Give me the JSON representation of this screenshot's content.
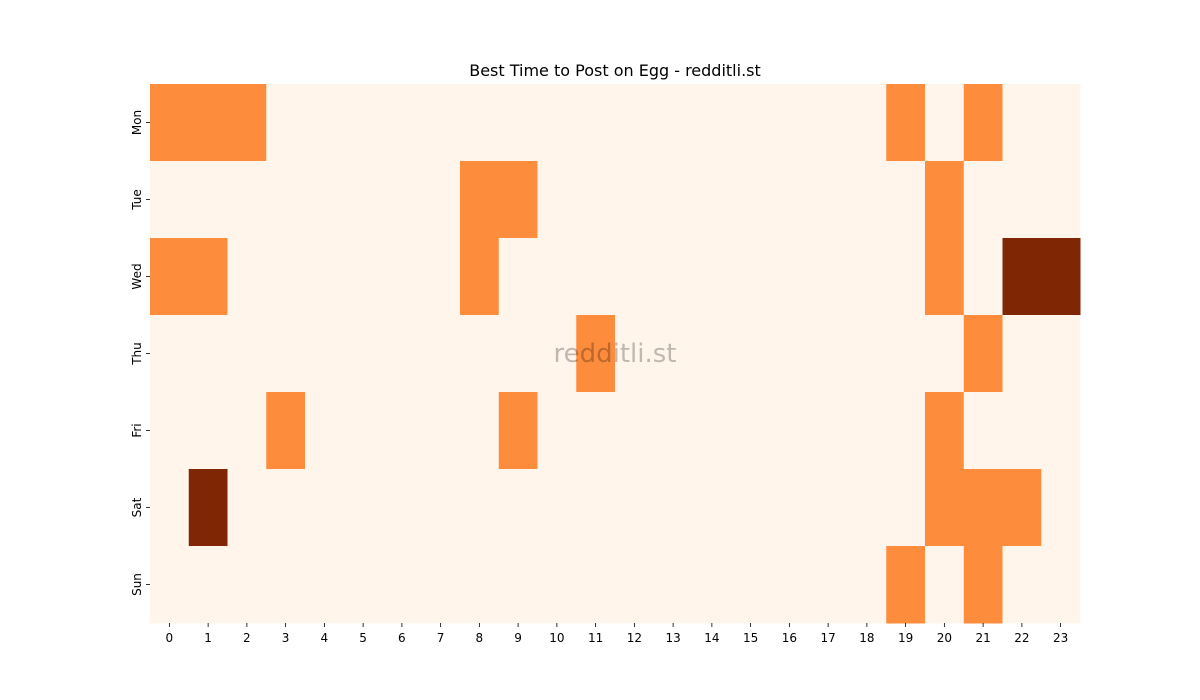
{
  "chart_data": {
    "type": "heatmap",
    "title": "Best Time to Post on Egg - redditli.st",
    "watermark": "redditli.st",
    "xlabel": "",
    "ylabel": "",
    "x_categories": [
      "0",
      "1",
      "2",
      "3",
      "4",
      "5",
      "6",
      "7",
      "8",
      "9",
      "10",
      "11",
      "12",
      "13",
      "14",
      "15",
      "16",
      "17",
      "18",
      "19",
      "20",
      "21",
      "22",
      "23"
    ],
    "y_categories": [
      "Mon",
      "Tue",
      "Wed",
      "Thu",
      "Fri",
      "Sat",
      "Sun"
    ],
    "values": [
      [
        1,
        1,
        1,
        0,
        0,
        0,
        0,
        0,
        0,
        0,
        0,
        0,
        0,
        0,
        0,
        0,
        0,
        0,
        0,
        1,
        0,
        1,
        0,
        0
      ],
      [
        0,
        0,
        0,
        0,
        0,
        0,
        0,
        0,
        1,
        1,
        0,
        0,
        0,
        0,
        0,
        0,
        0,
        0,
        0,
        0,
        1,
        0,
        0,
        0
      ],
      [
        1,
        1,
        0,
        0,
        0,
        0,
        0,
        0,
        1,
        0,
        0,
        0,
        0,
        0,
        0,
        0,
        0,
        0,
        0,
        0,
        1,
        0,
        2,
        2
      ],
      [
        0,
        0,
        0,
        0,
        0,
        0,
        0,
        0,
        0,
        0,
        0,
        1,
        0,
        0,
        0,
        0,
        0,
        0,
        0,
        0,
        0,
        1,
        0,
        0
      ],
      [
        0,
        0,
        0,
        1,
        0,
        0,
        0,
        0,
        0,
        1,
        0,
        0,
        0,
        0,
        0,
        0,
        0,
        0,
        0,
        0,
        1,
        0,
        0,
        0
      ],
      [
        0,
        2,
        0,
        0,
        0,
        0,
        0,
        0,
        0,
        0,
        0,
        0,
        0,
        0,
        0,
        0,
        0,
        0,
        0,
        0,
        1,
        1,
        1,
        0
      ],
      [
        0,
        0,
        0,
        0,
        0,
        0,
        0,
        0,
        0,
        0,
        0,
        0,
        0,
        0,
        0,
        0,
        0,
        0,
        0,
        1,
        0,
        1,
        0,
        0
      ]
    ],
    "value_range": [
      0,
      2
    ],
    "colormap": [
      "#fff5eb",
      "#fd8d3c",
      "#7f2704"
    ],
    "grid": false,
    "legend": "none"
  }
}
